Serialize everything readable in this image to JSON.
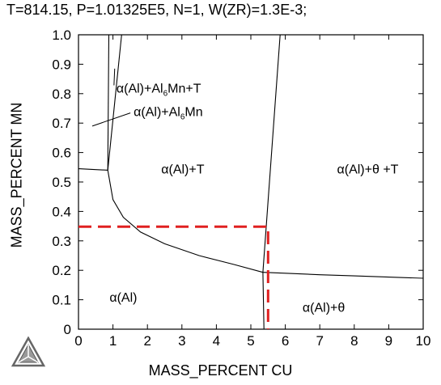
{
  "chart_data": {
    "type": "line",
    "title": "T=814.15, P=1.01325E5, N=1, W(ZR)=1.3E-3;",
    "xlabel": "MASS_PERCENT CU",
    "ylabel": "MASS_PERCENT MN",
    "xlim": [
      0,
      10
    ],
    "ylim": [
      0,
      1
    ],
    "xticks": [
      "0",
      "1",
      "2",
      "3",
      "4",
      "5",
      "6",
      "7",
      "8",
      "9",
      "10"
    ],
    "yticks": [
      "0",
      "0.1",
      "0.2",
      "0.3",
      "0.4",
      "0.5",
      "0.6",
      "0.7",
      "0.8",
      "0.9",
      "1.0"
    ],
    "grid": false,
    "series": [
      {
        "values": [
          [
            0.88,
            1.0
          ],
          [
            0.85,
            0.54
          ]
        ]
      },
      {
        "values": [
          [
            0,
            0.545
          ],
          [
            0.85,
            0.54
          ]
        ]
      },
      {
        "values": [
          [
            0.85,
            0.54
          ],
          [
            1.25,
            1.0
          ]
        ]
      },
      {
        "values": [
          [
            0.85,
            0.54
          ],
          [
            1.0,
            0.44
          ],
          [
            1.3,
            0.38
          ],
          [
            1.8,
            0.33
          ],
          [
            2.5,
            0.29
          ],
          [
            3.5,
            0.25
          ],
          [
            4.5,
            0.22
          ],
          [
            5.35,
            0.193
          ]
        ]
      },
      {
        "values": [
          [
            5.35,
            0.193
          ],
          [
            6.0,
            0.19
          ],
          [
            7.0,
            0.185
          ],
          [
            8.0,
            0.181
          ],
          [
            9.0,
            0.177
          ],
          [
            10.0,
            0.173
          ]
        ]
      },
      {
        "values": [
          [
            5.38,
            0
          ],
          [
            5.35,
            0.193
          ],
          [
            5.85,
            1.0
          ]
        ]
      },
      {
        "values": [
          [
            0,
            0.348
          ],
          [
            5.5,
            0.348
          ],
          [
            5.5,
            0
          ]
        ],
        "style": "dashed",
        "color": "#e02020"
      }
    ],
    "annotations": [
      {
        "x": 1.1,
        "y": 0.82,
        "text": "α(Al)+Al6Mn+T"
      },
      {
        "x": 1.6,
        "y": 0.74,
        "text": "α(Al)+Al6Mn"
      },
      {
        "x": 2.4,
        "y": 0.545,
        "text": "α(Al)+T"
      },
      {
        "x": 7.5,
        "y": 0.545,
        "text": "α(Al)+θ +T"
      },
      {
        "x": 0.9,
        "y": 0.11,
        "text": "α(Al)"
      },
      {
        "x": 6.5,
        "y": 0.075,
        "text": "α(Al)+θ"
      }
    ]
  }
}
